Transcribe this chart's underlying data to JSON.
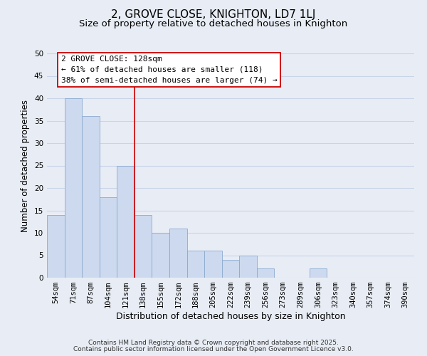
{
  "title": "2, GROVE CLOSE, KNIGHTON, LD7 1LJ",
  "subtitle": "Size of property relative to detached houses in Knighton",
  "xlabel": "Distribution of detached houses by size in Knighton",
  "ylabel": "Number of detached properties",
  "bar_labels": [
    "54sqm",
    "71sqm",
    "87sqm",
    "104sqm",
    "121sqm",
    "138sqm",
    "155sqm",
    "172sqm",
    "188sqm",
    "205sqm",
    "222sqm",
    "239sqm",
    "256sqm",
    "273sqm",
    "289sqm",
    "306sqm",
    "323sqm",
    "340sqm",
    "357sqm",
    "374sqm",
    "390sqm"
  ],
  "bar_values": [
    14,
    40,
    36,
    18,
    25,
    14,
    10,
    11,
    6,
    6,
    4,
    5,
    2,
    0,
    0,
    2,
    0,
    0,
    0,
    0,
    0
  ],
  "bar_color": "#ccd9ee",
  "bar_edge_color": "#8baad0",
  "vline_x": 4.5,
  "vline_color": "#cc0000",
  "annotation_title": "2 GROVE CLOSE: 128sqm",
  "annotation_line1": "← 61% of detached houses are smaller (118)",
  "annotation_line2": "38% of semi-detached houses are larger (74) →",
  "annotation_box_color": "#ffffff",
  "annotation_box_edge": "#cc0000",
  "ylim": [
    0,
    50
  ],
  "yticks": [
    0,
    5,
    10,
    15,
    20,
    25,
    30,
    35,
    40,
    45,
    50
  ],
  "grid_color": "#c8d4e8",
  "background_color": "#e8edf5",
  "footer1": "Contains HM Land Registry data © Crown copyright and database right 2025.",
  "footer2": "Contains public sector information licensed under the Open Government Licence v3.0.",
  "title_fontsize": 11,
  "subtitle_fontsize": 9.5,
  "xlabel_fontsize": 9,
  "ylabel_fontsize": 8.5,
  "tick_fontsize": 7.5,
  "annotation_fontsize": 8,
  "footer_fontsize": 6.5
}
